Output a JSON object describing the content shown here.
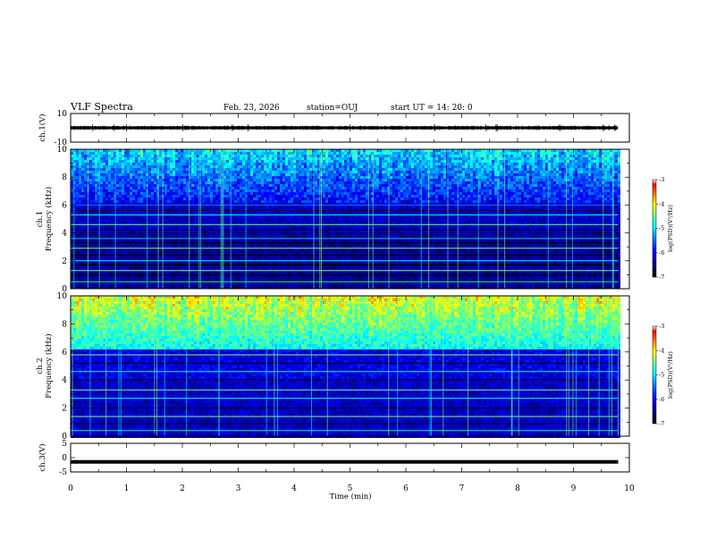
{
  "header": {
    "title": "VLF Spectra",
    "date": "Feb. 23, 2026",
    "station": "station=OUJ",
    "start": "start  UT  =   14: 20: 0"
  },
  "colors": {
    "background": "#ffffff",
    "axis": "#000000",
    "spectrogram_scale": [
      "#000000",
      "#00007f",
      "#0000ff",
      "#007fff",
      "#00ffff",
      "#7fff7f",
      "#ffff00",
      "#ff7f00",
      "#ff0000",
      "#ffffff"
    ]
  },
  "chart_data": [
    {
      "type": "line",
      "id": "ch1",
      "ylabel": "ch.1(V)",
      "ylim": [
        -10,
        10
      ],
      "yticks": [
        "10",
        "-10"
      ],
      "xlim": [
        0,
        10
      ],
      "series": [
        {
          "x": [
            0,
            9.8
          ],
          "y": [
            0,
            0
          ]
        }
      ]
    },
    {
      "type": "heatmap",
      "id": "ch1-spectrogram",
      "ylabel_top": "ch.1",
      "ylabel": "Frequency  (kHz)",
      "ylim": [
        0,
        10
      ],
      "yticks": [
        "0",
        "2",
        "4",
        "6",
        "8",
        "10"
      ],
      "xlim": [
        0,
        10
      ],
      "data_xmax": 9.8,
      "colorbar": {
        "label": "log(PSD)(V²/Hz)",
        "range": [
          -7,
          -3
        ],
        "ticks": [
          "-3",
          "-4",
          "-5",
          "-6",
          "-7"
        ]
      }
    },
    {
      "type": "heatmap",
      "id": "ch2-spectrogram",
      "ylabel_top": "ch.2",
      "ylabel": "Frequency  (kHz)",
      "ylim": [
        0,
        10
      ],
      "yticks": [
        "0",
        "2",
        "4",
        "6",
        "8",
        "10"
      ],
      "xlim": [
        0,
        10
      ],
      "data_xmax": 9.8,
      "colorbar": {
        "label": "log(PSD)(V²/Hz)",
        "range": [
          -7,
          -3
        ],
        "ticks": [
          "-3",
          "-4",
          "-5",
          "-6",
          "-7"
        ]
      }
    },
    {
      "type": "line",
      "id": "ch3",
      "ylabel": "ch.3(V)",
      "ylim": [
        -5,
        5
      ],
      "yticks": [
        "5",
        "0",
        "-5"
      ],
      "xlim": [
        0,
        10
      ],
      "series": [
        {
          "x": [
            0,
            9.8
          ],
          "y": [
            -1.5,
            -1.5
          ]
        }
      ]
    }
  ],
  "x_axis": {
    "label": "Time  (min)",
    "ticks": [
      "0",
      "1",
      "2",
      "3",
      "4",
      "5",
      "6",
      "7",
      "8",
      "9",
      "10"
    ]
  }
}
